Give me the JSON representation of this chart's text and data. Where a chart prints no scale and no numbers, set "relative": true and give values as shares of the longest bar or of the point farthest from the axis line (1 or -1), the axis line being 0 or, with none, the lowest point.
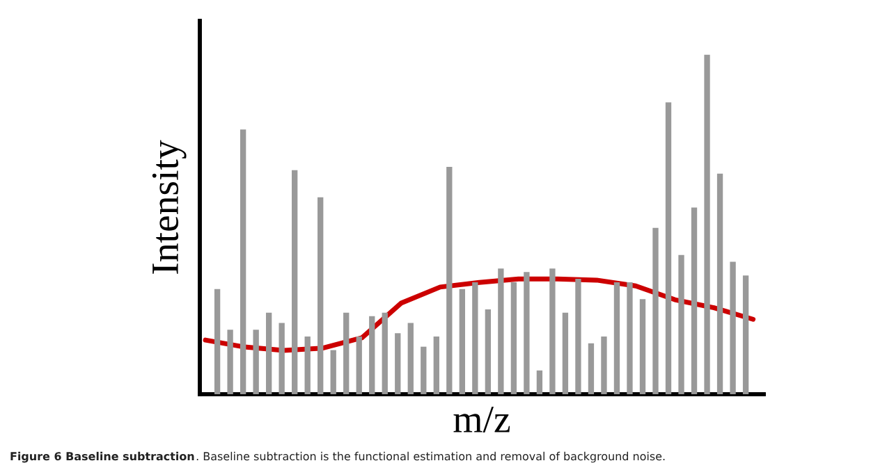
{
  "chart_data": [
    {
      "type": "bar",
      "relative": true,
      "color": "#999999",
      "xlabel": "m/z",
      "ylabel": "Intensity",
      "categories": [
        null,
        null,
        null,
        null,
        null,
        null,
        null,
        null,
        null,
        null,
        null,
        null,
        null,
        null,
        null,
        null,
        null,
        null,
        null,
        null,
        null,
        null,
        null,
        null,
        null,
        null,
        null,
        null,
        null,
        null,
        null,
        null,
        null,
        null,
        null,
        null,
        null,
        null,
        null,
        null,
        null,
        null
      ],
      "values": [
        0.31,
        0.19,
        0.78,
        0.19,
        0.24,
        0.21,
        0.66,
        0.17,
        0.58,
        0.13,
        0.24,
        0.17,
        0.23,
        0.24,
        0.18,
        0.21,
        0.14,
        0.17,
        0.67,
        0.31,
        0.33,
        0.25,
        0.37,
        0.33,
        0.36,
        0.07,
        0.37,
        0.24,
        0.34,
        0.15,
        0.17,
        0.33,
        0.33,
        0.28,
        0.49,
        0.86,
        0.41,
        0.55,
        1,
        0.65,
        0.39,
        0.35
      ],
      "annotations": [
        "Figure 6 Baseline subtraction",
        ". Baseline subtraction is the functional estimation and removal of background noise."
      ]
    },
    {
      "type": "line",
      "relative": true,
      "color": "#cc0000",
      "categories": [
        null,
        null,
        null,
        null,
        null,
        null,
        null,
        null,
        null,
        null,
        null,
        null,
        null,
        null,
        null
      ],
      "values": [
        0.47,
        0.41,
        0.38,
        0.4,
        0.49,
        0.79,
        0.93,
        0.97,
        1,
        1,
        0.99,
        0.94,
        0.82,
        0.75,
        0.65
      ]
    }
  ]
}
